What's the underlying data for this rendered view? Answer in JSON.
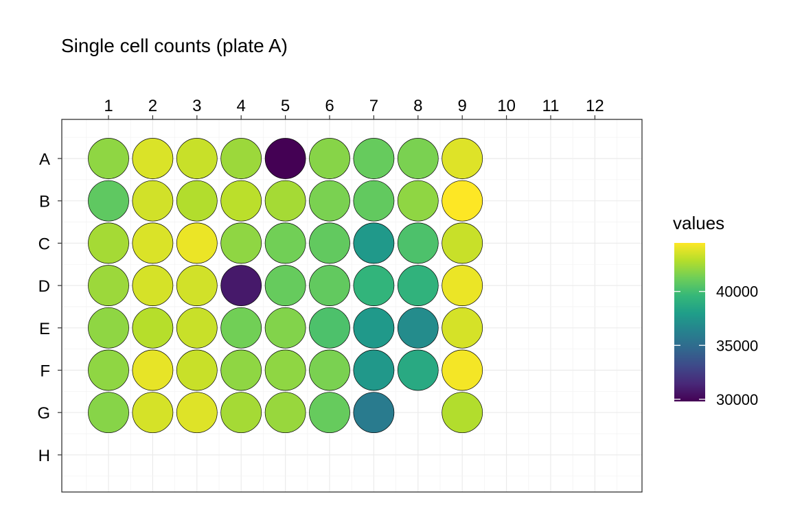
{
  "chart_data": {
    "type": "heatmap",
    "title": "Single cell counts (plate A)",
    "columns": [
      "1",
      "2",
      "3",
      "4",
      "5",
      "6",
      "7",
      "8",
      "9",
      "10",
      "11",
      "12"
    ],
    "rows": [
      "A",
      "B",
      "C",
      "D",
      "E",
      "F",
      "G",
      "H"
    ],
    "legend": {
      "title": "values",
      "min": 29800,
      "max": 44500,
      "ticks": [
        30000,
        35000,
        40000
      ],
      "tick_labels": [
        "30000",
        "35000",
        "40000"
      ],
      "colormap": "viridis"
    },
    "wells": [
      {
        "row": "A",
        "col": "1",
        "value": 42000
      },
      {
        "row": "A",
        "col": "2",
        "value": 43700
      },
      {
        "row": "A",
        "col": "3",
        "value": 43300
      },
      {
        "row": "A",
        "col": "4",
        "value": 42300
      },
      {
        "row": "A",
        "col": "5",
        "value": 29800
      },
      {
        "row": "A",
        "col": "6",
        "value": 41800
      },
      {
        "row": "A",
        "col": "7",
        "value": 41000
      },
      {
        "row": "A",
        "col": "8",
        "value": 41500
      },
      {
        "row": "A",
        "col": "9",
        "value": 43800
      },
      {
        "row": "B",
        "col": "1",
        "value": 40800
      },
      {
        "row": "B",
        "col": "2",
        "value": 43500
      },
      {
        "row": "B",
        "col": "3",
        "value": 42800
      },
      {
        "row": "B",
        "col": "4",
        "value": 43000
      },
      {
        "row": "B",
        "col": "5",
        "value": 42500
      },
      {
        "row": "B",
        "col": "6",
        "value": 41500
      },
      {
        "row": "B",
        "col": "7",
        "value": 40900
      },
      {
        "row": "B",
        "col": "8",
        "value": 42000
      },
      {
        "row": "B",
        "col": "9",
        "value": 44500
      },
      {
        "row": "C",
        "col": "1",
        "value": 42500
      },
      {
        "row": "C",
        "col": "2",
        "value": 43700
      },
      {
        "row": "C",
        "col": "3",
        "value": 44100
      },
      {
        "row": "C",
        "col": "4",
        "value": 42000
      },
      {
        "row": "C",
        "col": "5",
        "value": 41300
      },
      {
        "row": "C",
        "col": "6",
        "value": 40900
      },
      {
        "row": "C",
        "col": "7",
        "value": 37700
      },
      {
        "row": "C",
        "col": "8",
        "value": 40300
      },
      {
        "row": "C",
        "col": "9",
        "value": 43300
      },
      {
        "row": "D",
        "col": "1",
        "value": 42300
      },
      {
        "row": "D",
        "col": "2",
        "value": 43600
      },
      {
        "row": "D",
        "col": "3",
        "value": 43500
      },
      {
        "row": "D",
        "col": "4",
        "value": 30800
      },
      {
        "row": "D",
        "col": "5",
        "value": 41000
      },
      {
        "row": "D",
        "col": "6",
        "value": 40900
      },
      {
        "row": "D",
        "col": "7",
        "value": 39400
      },
      {
        "row": "D",
        "col": "8",
        "value": 39300
      },
      {
        "row": "D",
        "col": "9",
        "value": 44100
      },
      {
        "row": "E",
        "col": "1",
        "value": 42000
      },
      {
        "row": "E",
        "col": "2",
        "value": 42900
      },
      {
        "row": "E",
        "col": "3",
        "value": 43300
      },
      {
        "row": "E",
        "col": "4",
        "value": 41300
      },
      {
        "row": "E",
        "col": "5",
        "value": 41700
      },
      {
        "row": "E",
        "col": "6",
        "value": 40300
      },
      {
        "row": "E",
        "col": "7",
        "value": 37700
      },
      {
        "row": "E",
        "col": "8",
        "value": 36900
      },
      {
        "row": "E",
        "col": "9",
        "value": 43600
      },
      {
        "row": "F",
        "col": "1",
        "value": 42000
      },
      {
        "row": "F",
        "col": "2",
        "value": 44000
      },
      {
        "row": "F",
        "col": "3",
        "value": 43300
      },
      {
        "row": "F",
        "col": "4",
        "value": 42000
      },
      {
        "row": "F",
        "col": "5",
        "value": 42000
      },
      {
        "row": "F",
        "col": "6",
        "value": 41500
      },
      {
        "row": "F",
        "col": "7",
        "value": 37600
      },
      {
        "row": "F",
        "col": "8",
        "value": 38700
      },
      {
        "row": "F",
        "col": "9",
        "value": 44300
      },
      {
        "row": "G",
        "col": "1",
        "value": 41800
      },
      {
        "row": "G",
        "col": "2",
        "value": 43600
      },
      {
        "row": "G",
        "col": "3",
        "value": 43800
      },
      {
        "row": "G",
        "col": "4",
        "value": 42500
      },
      {
        "row": "G",
        "col": "5",
        "value": 42200
      },
      {
        "row": "G",
        "col": "6",
        "value": 41000
      },
      {
        "row": "G",
        "col": "7",
        "value": 35900
      },
      {
        "row": "G",
        "col": "9",
        "value": 42800
      }
    ],
    "grid": true
  }
}
